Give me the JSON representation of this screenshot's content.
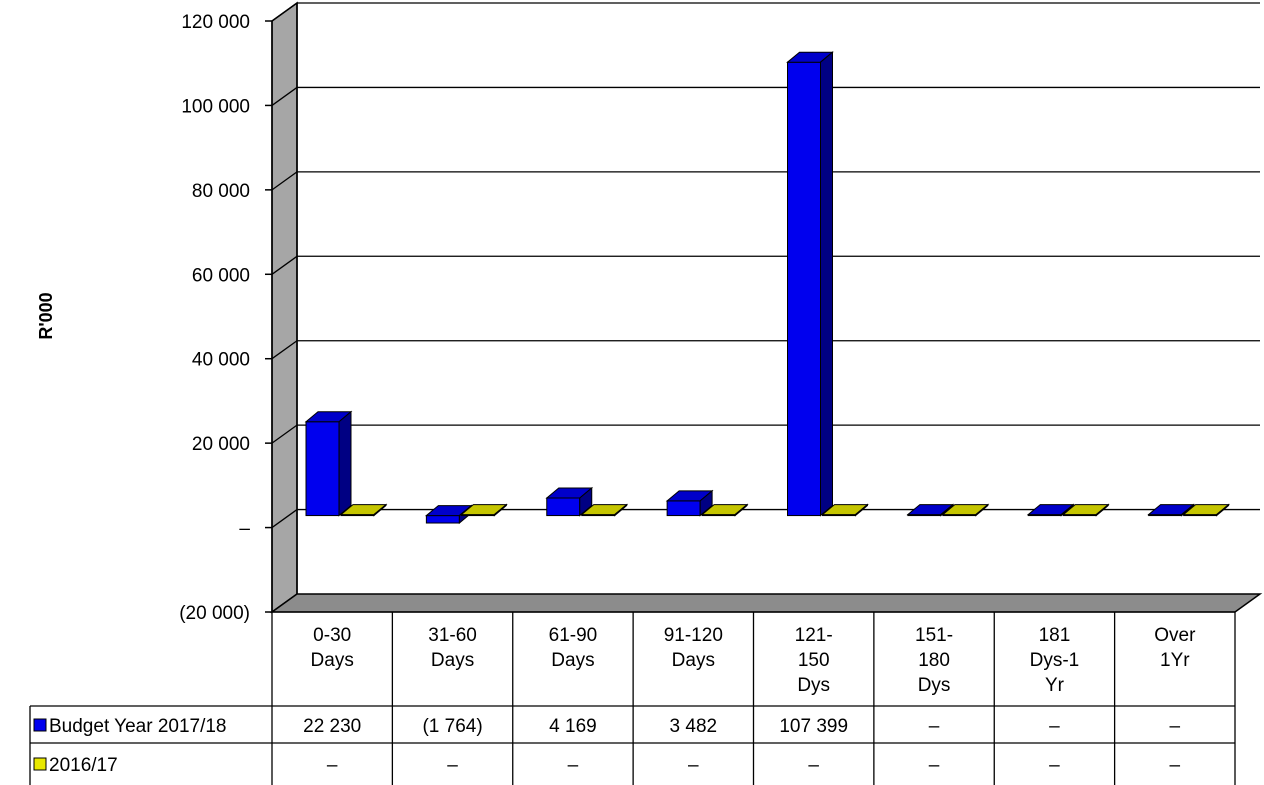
{
  "chart_data": {
    "type": "bar",
    "ylabel": "R'000",
    "ylim": [
      -20000,
      120000
    ],
    "y_ticks": [
      120000,
      100000,
      80000,
      60000,
      40000,
      20000,
      0,
      -20000
    ],
    "y_tick_labels": [
      "120 000",
      "100 000",
      "80 000",
      "60 000",
      "40 000",
      "20 000",
      "–",
      "(20 000)"
    ],
    "grid": true,
    "legend_position": "data-table",
    "categories": [
      [
        "0-30",
        "Days"
      ],
      [
        "31-60",
        "Days"
      ],
      [
        "61-90",
        "Days"
      ],
      [
        "91-120",
        "Days"
      ],
      [
        "121-",
        "150",
        "Dys"
      ],
      [
        "151-",
        "180",
        "Dys"
      ],
      [
        "181",
        "Dys-1",
        "Yr"
      ],
      [
        "Over",
        "1Yr"
      ]
    ],
    "series": [
      {
        "name": "Budget Year 2017/18",
        "color": "#0000ee",
        "values": [
          22230,
          -1764,
          4169,
          3482,
          107399,
          0,
          0,
          0
        ],
        "table_values": [
          "22 230",
          "(1 764)",
          "4 169",
          "3 482",
          "107 399",
          "–",
          "–",
          "–"
        ]
      },
      {
        "name": "2016/17",
        "color": "#e8e800",
        "values": [
          0,
          0,
          0,
          0,
          0,
          0,
          0,
          0
        ],
        "table_values": [
          "–",
          "–",
          "–",
          "–",
          "–",
          "–",
          "–",
          "–"
        ]
      }
    ]
  }
}
